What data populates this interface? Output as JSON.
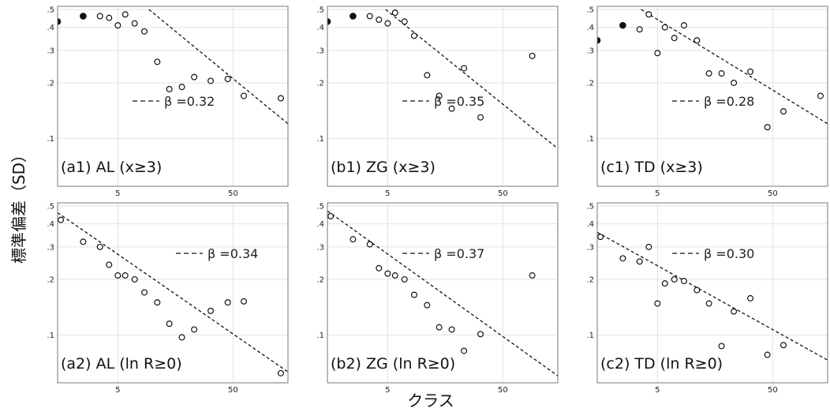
{
  "figure": {
    "ylabel": "標準偏差（SD）",
    "xlabel": "クラス"
  },
  "chart_data": [
    {
      "type": "scatter",
      "panel_label": "(a1) AL (x≥3)",
      "fit_label": "β =0.32",
      "xscale": "log",
      "yscale": "log",
      "xlim": [
        1.5,
        150
      ],
      "ylim": [
        0.055,
        0.52
      ],
      "xticks": [
        5,
        50
      ],
      "yticks": [
        0.1,
        0.2,
        0.3,
        0.4,
        0.5
      ],
      "grid": true,
      "fit": {
        "x": [
          9.3,
          150
        ],
        "y": [
          0.5,
          0.12
        ]
      },
      "points_filled": [
        {
          "x": 1.5,
          "y": 0.43
        },
        {
          "x": 2.5,
          "y": 0.46
        }
      ],
      "points_open": [
        {
          "x": 3.5,
          "y": 0.46
        },
        {
          "x": 4.2,
          "y": 0.45
        },
        {
          "x": 5,
          "y": 0.41
        },
        {
          "x": 5.8,
          "y": 0.47
        },
        {
          "x": 7,
          "y": 0.42
        },
        {
          "x": 8.5,
          "y": 0.38
        },
        {
          "x": 11,
          "y": 0.26
        },
        {
          "x": 14,
          "y": 0.185
        },
        {
          "x": 18,
          "y": 0.19
        },
        {
          "x": 23,
          "y": 0.215
        },
        {
          "x": 32,
          "y": 0.205
        },
        {
          "x": 45,
          "y": 0.21
        },
        {
          "x": 62,
          "y": 0.17
        },
        {
          "x": 130,
          "y": 0.165
        }
      ]
    },
    {
      "type": "scatter",
      "panel_label": "(b1) ZG (x≥3)",
      "fit_label": "β =0.35",
      "xscale": "log",
      "yscale": "log",
      "xlim": [
        1.5,
        150
      ],
      "ylim": [
        0.055,
        0.52
      ],
      "xticks": [
        5,
        50
      ],
      "yticks": [
        0.1,
        0.2,
        0.3,
        0.4,
        0.5
      ],
      "grid": true,
      "fit": {
        "x": [
          4.8,
          150
        ],
        "y": [
          0.5,
          0.088
        ]
      },
      "points_filled": [
        {
          "x": 1.5,
          "y": 0.43
        },
        {
          "x": 2.5,
          "y": 0.46
        }
      ],
      "points_open": [
        {
          "x": 3.5,
          "y": 0.46
        },
        {
          "x": 4.2,
          "y": 0.44
        },
        {
          "x": 5,
          "y": 0.42
        },
        {
          "x": 5.8,
          "y": 0.48
        },
        {
          "x": 7,
          "y": 0.43
        },
        {
          "x": 8.5,
          "y": 0.36
        },
        {
          "x": 11,
          "y": 0.22
        },
        {
          "x": 14,
          "y": 0.17
        },
        {
          "x": 18,
          "y": 0.145
        },
        {
          "x": 23,
          "y": 0.24
        },
        {
          "x": 32,
          "y": 0.13
        },
        {
          "x": 90,
          "y": 0.28
        }
      ]
    },
    {
      "type": "scatter",
      "panel_label": "(c1) TD (x≥3)",
      "fit_label": "β =0.28",
      "xscale": "log",
      "yscale": "log",
      "xlim": [
        1.5,
        150
      ],
      "ylim": [
        0.055,
        0.52
      ],
      "xticks": [
        5,
        50
      ],
      "yticks": [
        0.1,
        0.2,
        0.3,
        0.4,
        0.5
      ],
      "grid": true,
      "fit": {
        "x": [
          3.6,
          150
        ],
        "y": [
          0.5,
          0.12
        ]
      },
      "points_filled": [
        {
          "x": 1.5,
          "y": 0.34
        },
        {
          "x": 2.5,
          "y": 0.41
        }
      ],
      "points_open": [
        {
          "x": 3.5,
          "y": 0.39
        },
        {
          "x": 4.2,
          "y": 0.47
        },
        {
          "x": 5,
          "y": 0.29
        },
        {
          "x": 5.8,
          "y": 0.4
        },
        {
          "x": 7,
          "y": 0.35
        },
        {
          "x": 8.5,
          "y": 0.41
        },
        {
          "x": 11,
          "y": 0.34
        },
        {
          "x": 14,
          "y": 0.225
        },
        {
          "x": 18,
          "y": 0.225
        },
        {
          "x": 23,
          "y": 0.2
        },
        {
          "x": 32,
          "y": 0.23
        },
        {
          "x": 45,
          "y": 0.115
        },
        {
          "x": 62,
          "y": 0.14
        },
        {
          "x": 130,
          "y": 0.17
        }
      ]
    },
    {
      "type": "scatter",
      "panel_label": "(a2) AL (ln R≥0)",
      "fit_label": "β =0.34",
      "xscale": "log",
      "yscale": "log",
      "xlim": [
        1.5,
        150
      ],
      "ylim": [
        0.055,
        0.52
      ],
      "xticks": [
        5,
        50
      ],
      "yticks": [
        0.1,
        0.2,
        0.3,
        0.4,
        0.5
      ],
      "grid": true,
      "fit": {
        "x": [
          1.5,
          150
        ],
        "y": [
          0.46,
          0.063
        ]
      },
      "points_filled": [],
      "points_open": [
        {
          "x": 1.6,
          "y": 0.42
        },
        {
          "x": 2.5,
          "y": 0.32
        },
        {
          "x": 3.5,
          "y": 0.3
        },
        {
          "x": 4.2,
          "y": 0.24
        },
        {
          "x": 5,
          "y": 0.21
        },
        {
          "x": 5.8,
          "y": 0.21
        },
        {
          "x": 7,
          "y": 0.2
        },
        {
          "x": 8.5,
          "y": 0.17
        },
        {
          "x": 11,
          "y": 0.15
        },
        {
          "x": 14,
          "y": 0.115
        },
        {
          "x": 18,
          "y": 0.097
        },
        {
          "x": 23,
          "y": 0.107
        },
        {
          "x": 32,
          "y": 0.135
        },
        {
          "x": 45,
          "y": 0.15
        },
        {
          "x": 62,
          "y": 0.152
        },
        {
          "x": 130,
          "y": 0.062
        }
      ]
    },
    {
      "type": "scatter",
      "panel_label": "(b2) ZG (ln R≥0)",
      "fit_label": "β =0.37",
      "xscale": "log",
      "yscale": "log",
      "xlim": [
        1.5,
        150
      ],
      "ylim": [
        0.055,
        0.52
      ],
      "xticks": [
        5,
        50
      ],
      "yticks": [
        0.1,
        0.2,
        0.3,
        0.4,
        0.5
      ],
      "grid": true,
      "fit": {
        "x": [
          1.5,
          150
        ],
        "y": [
          0.47,
          0.06
        ]
      },
      "points_filled": [],
      "points_open": [
        {
          "x": 1.6,
          "y": 0.44
        },
        {
          "x": 2.5,
          "y": 0.33
        },
        {
          "x": 3.5,
          "y": 0.31
        },
        {
          "x": 4.2,
          "y": 0.23
        },
        {
          "x": 5,
          "y": 0.215
        },
        {
          "x": 5.8,
          "y": 0.21
        },
        {
          "x": 7,
          "y": 0.2
        },
        {
          "x": 8.5,
          "y": 0.165
        },
        {
          "x": 11,
          "y": 0.145
        },
        {
          "x": 14,
          "y": 0.11
        },
        {
          "x": 18,
          "y": 0.107
        },
        {
          "x": 23,
          "y": 0.082
        },
        {
          "x": 32,
          "y": 0.101
        },
        {
          "x": 90,
          "y": 0.21
        }
      ]
    },
    {
      "type": "scatter",
      "panel_label": "(c2) TD (ln R≥0)",
      "fit_label": "β =0.30",
      "xscale": "log",
      "yscale": "log",
      "xlim": [
        1.5,
        150
      ],
      "ylim": [
        0.055,
        0.52
      ],
      "xticks": [
        5,
        50
      ],
      "yticks": [
        0.1,
        0.2,
        0.3,
        0.4,
        0.5
      ],
      "grid": true,
      "fit": {
        "x": [
          1.5,
          150
        ],
        "y": [
          0.36,
          0.073
        ]
      },
      "points_filled": [],
      "points_open": [
        {
          "x": 1.6,
          "y": 0.34
        },
        {
          "x": 2.5,
          "y": 0.26
        },
        {
          "x": 3.5,
          "y": 0.25
        },
        {
          "x": 4.2,
          "y": 0.3
        },
        {
          "x": 5,
          "y": 0.148
        },
        {
          "x": 5.8,
          "y": 0.19
        },
        {
          "x": 7,
          "y": 0.2
        },
        {
          "x": 8.5,
          "y": 0.196
        },
        {
          "x": 11,
          "y": 0.175
        },
        {
          "x": 14,
          "y": 0.148
        },
        {
          "x": 18,
          "y": 0.087
        },
        {
          "x": 23,
          "y": 0.134
        },
        {
          "x": 32,
          "y": 0.158
        },
        {
          "x": 45,
          "y": 0.078
        },
        {
          "x": 62,
          "y": 0.088
        },
        {
          "x": 130,
          "y": 0.047
        }
      ]
    }
  ]
}
